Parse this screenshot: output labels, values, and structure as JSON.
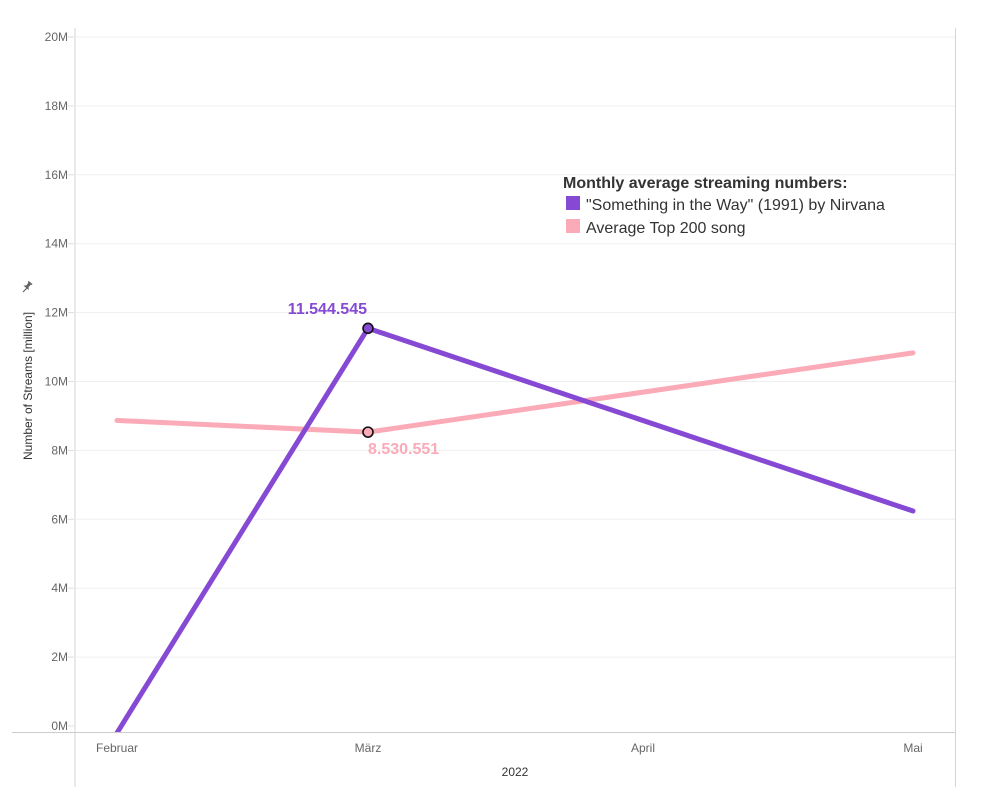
{
  "chart_data": {
    "type": "line",
    "categories": [
      "Februar",
      "März",
      "April",
      "Mai"
    ],
    "xlabel": "2022",
    "ylabel": "Number of Streams [million]",
    "ylim": [
      0,
      20000000
    ],
    "yticks": [
      {
        "value": 0,
        "label": "0M"
      },
      {
        "value": 2000000,
        "label": "2M"
      },
      {
        "value": 4000000,
        "label": "4M"
      },
      {
        "value": 6000000,
        "label": "6M"
      },
      {
        "value": 8000000,
        "label": "8M"
      },
      {
        "value": 10000000,
        "label": "10M"
      },
      {
        "value": 12000000,
        "label": "12M"
      },
      {
        "value": 14000000,
        "label": "14M"
      },
      {
        "value": 16000000,
        "label": "16M"
      },
      {
        "value": 18000000,
        "label": "18M"
      },
      {
        "value": 20000000,
        "label": "20M"
      }
    ],
    "grid": true,
    "legend": {
      "title": "Monthly average streaming numbers:",
      "position": "top-right"
    },
    "series": [
      {
        "name": "\"Something in the Way\" (1991) by Nirvana",
        "color": "#8549d4",
        "points": [
          {
            "category": "Februar",
            "value": -200000
          },
          {
            "category": "März",
            "value": 11544545,
            "label": "11.544.545",
            "marker": true
          },
          {
            "category": "Mai",
            "value": 6240000
          }
        ]
      },
      {
        "name": "Average Top 200 song",
        "color": "#fbaab7",
        "points": [
          {
            "category": "Februar",
            "value": 8870000
          },
          {
            "category": "März",
            "value": 8530551,
            "label": "8.530.551",
            "marker": true
          },
          {
            "category": "Mai",
            "value": 10830000
          }
        ]
      }
    ]
  }
}
